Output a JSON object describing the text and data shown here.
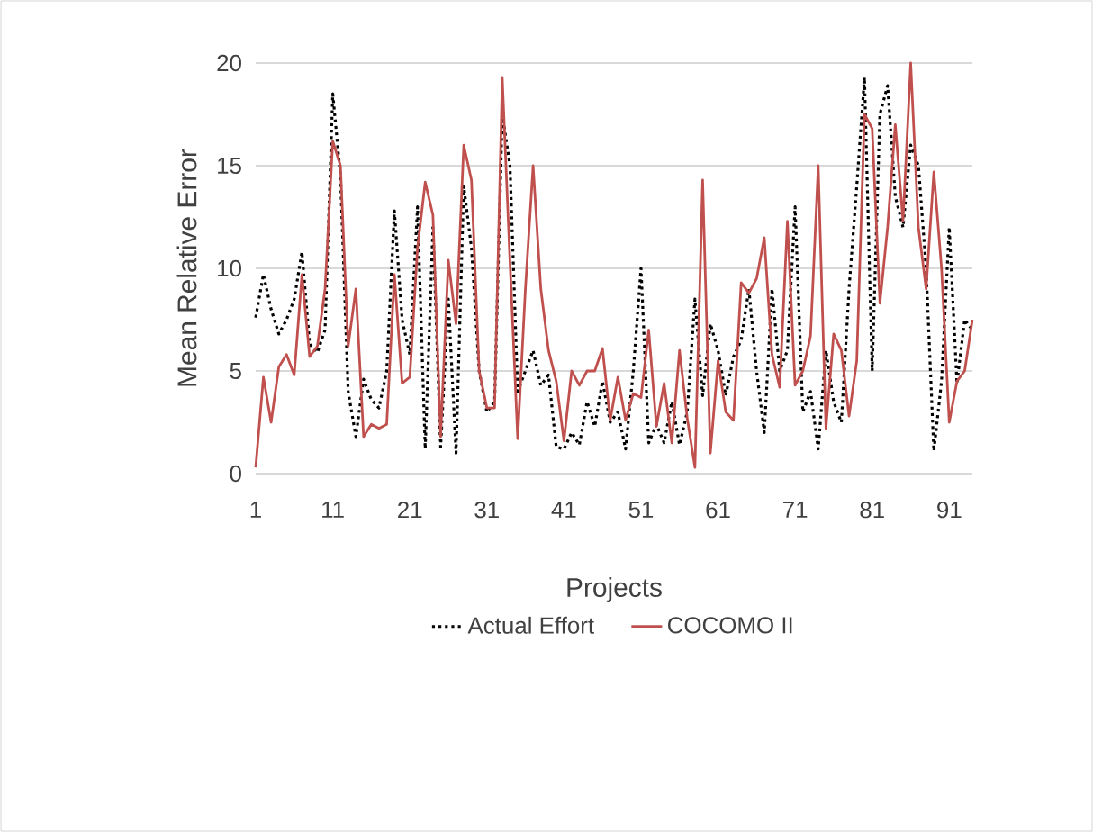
{
  "chart_data": {
    "type": "line",
    "xlabel": "Projects",
    "ylabel": "Mean Relative Error",
    "categories": [
      "1",
      null,
      null,
      null,
      null,
      null,
      null,
      null,
      null,
      null,
      "11",
      null,
      null,
      null,
      null,
      null,
      null,
      null,
      null,
      null,
      "21",
      null,
      null,
      null,
      null,
      null,
      null,
      null,
      null,
      null,
      "31",
      null,
      null,
      null,
      null,
      null,
      null,
      null,
      null,
      null,
      "41",
      null,
      null,
      null,
      null,
      null,
      null,
      null,
      null,
      null,
      "51",
      null,
      null,
      null,
      null,
      null,
      null,
      null,
      null,
      null,
      "61",
      null,
      null,
      null,
      null,
      null,
      null,
      null,
      null,
      null,
      "71",
      null,
      null,
      null,
      null,
      null,
      null,
      null,
      null,
      null,
      "81",
      null,
      null,
      null,
      null,
      null,
      null,
      null,
      null,
      null,
      "91",
      null,
      null,
      null
    ],
    "series": [
      {
        "name": "Actual Effort",
        "color": "#000000",
        "line_style": "dotted",
        "values": [
          7.6,
          9.7,
          8,
          6.8,
          7.5,
          8.5,
          10.8,
          6.3,
          5.9,
          7,
          18.5,
          14.5,
          4,
          1.8,
          4.6,
          3.6,
          3.2,
          5,
          12.8,
          7.5,
          5.8,
          13,
          1.2,
          12,
          1.3,
          8.5,
          1,
          14,
          11,
          5,
          3,
          3.5,
          17.5,
          15,
          4,
          5,
          6,
          4.3,
          4.8,
          1.3,
          1.2,
          2,
          1.4,
          3.5,
          2.3,
          4.5,
          2.5,
          3,
          1.2,
          5,
          10,
          1.5,
          2.4,
          1.5,
          3.5,
          1.4,
          3,
          8.5,
          3.8,
          7.3,
          6,
          3.8,
          5.7,
          6.5,
          9,
          5,
          2,
          9,
          5,
          6,
          13,
          3,
          4,
          1.2,
          6,
          3.5,
          2.5,
          9,
          14,
          19.3,
          5,
          17.5,
          18.9,
          13.5,
          12,
          16,
          15,
          10,
          1.1,
          4.5,
          12,
          4.4,
          7.5,
          7
        ]
      },
      {
        "name": "COCOMO II",
        "color": "#c0504d",
        "line_style": "solid",
        "values": [
          0.3,
          4.7,
          2.5,
          5.2,
          5.8,
          4.8,
          9.7,
          5.7,
          6.2,
          9,
          16.2,
          15,
          6.2,
          9,
          1.8,
          2.4,
          2.2,
          2.4,
          9.7,
          4.4,
          4.7,
          11,
          14.2,
          12.6,
          1.8,
          10.4,
          7.3,
          16,
          14.3,
          5,
          3.2,
          3.2,
          19.3,
          10.3,
          1.7,
          9,
          15,
          9,
          6,
          4.5,
          1.6,
          5,
          4.3,
          5,
          5,
          6.1,
          2.6,
          4.7,
          2.6,
          3.9,
          3.7,
          7,
          2.3,
          4.4,
          1.5,
          6,
          2.7,
          0.3,
          14.3,
          1,
          5.5,
          3,
          2.6,
          9.3,
          8.8,
          9.5,
          11.5,
          5.8,
          4.2,
          12.3,
          4.3,
          5,
          6.7,
          15,
          2.2,
          6.8,
          6,
          2.8,
          5.5,
          17.5,
          16.8,
          8.3,
          12,
          17,
          12.3,
          20,
          12,
          9,
          14.7,
          10,
          2.5,
          4.5,
          5,
          7.5
        ]
      }
    ],
    "ylim": [
      0,
      20
    ],
    "yticks": [
      0,
      5,
      10,
      15,
      20
    ],
    "grid": "y",
    "legend": "bottom"
  }
}
